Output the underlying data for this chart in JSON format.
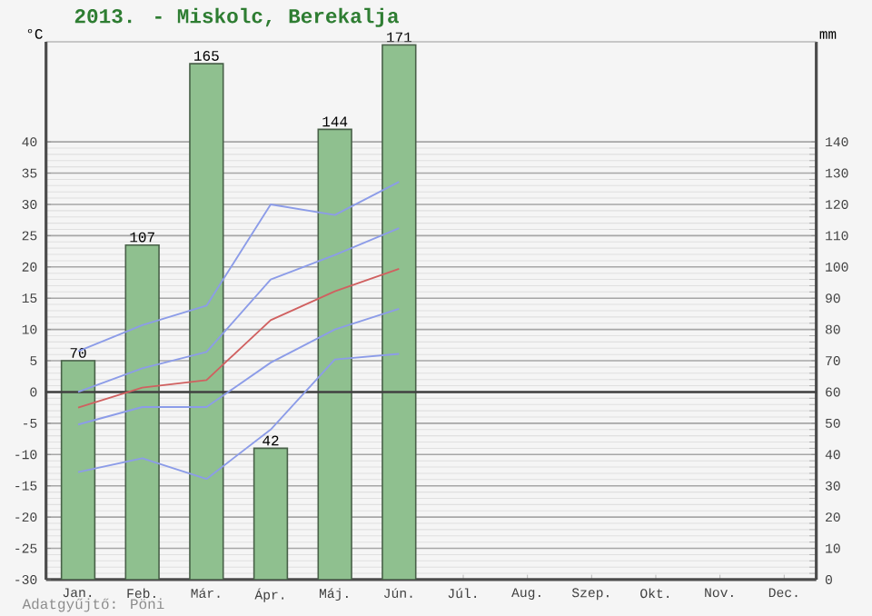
{
  "chart_data": {
    "type": "bar",
    "title": "2013. - Miskolc, Berekalja",
    "ylabel": "°C",
    "y2label": "mm",
    "categories": [
      "Jan.",
      "Feb.",
      "Már.",
      "Ápr.",
      "Máj.",
      "Jún.",
      "Júl.",
      "Aug.",
      "Szep.",
      "Okt.",
      "Nov.",
      "Dec."
    ],
    "series": [
      {
        "axis": "y2",
        "color": "#8fc08f",
        "values": [
          70,
          107,
          165,
          42,
          144,
          171,
          null,
          null,
          null,
          null,
          null,
          null
        ],
        "value_labels": [
          "70",
          "107",
          "165",
          "42",
          "144",
          "171",
          null,
          null,
          null,
          null,
          null,
          null
        ]
      },
      {
        "type": "line",
        "color": "#8c9ce8",
        "values": [
          6.5,
          10.7,
          13.8,
          30,
          28.3,
          33.6,
          null,
          null,
          null,
          null,
          null,
          null
        ]
      },
      {
        "type": "line",
        "color": "#8c9ce8",
        "values": [
          0,
          3.8,
          6.4,
          18,
          21.9,
          26.2,
          null,
          null,
          null,
          null,
          null,
          null
        ]
      },
      {
        "type": "line",
        "color": "#d06060",
        "values": [
          -2.5,
          0.7,
          1.9,
          11.5,
          16.1,
          19.7,
          null,
          null,
          null,
          null,
          null,
          null
        ]
      },
      {
        "type": "line",
        "color": "#8c9ce8",
        "values": [
          -5.2,
          -2.4,
          -2.4,
          4.7,
          10,
          13.3,
          null,
          null,
          null,
          null,
          null,
          null
        ]
      },
      {
        "type": "line",
        "color": "#8c9ce8",
        "values": [
          -12.8,
          -10.6,
          -13.9,
          -6,
          5.2,
          6.1,
          null,
          null,
          null,
          null,
          null,
          null
        ]
      }
    ],
    "ylim": [
      -30,
      56
    ],
    "yticks": [
      -30,
      -25,
      -20,
      -15,
      -10,
      -5,
      0,
      5,
      10,
      15,
      20,
      25,
      30,
      35,
      40
    ],
    "y2lim": [
      0,
      172
    ],
    "y2ticks": [
      0,
      10,
      20,
      30,
      40,
      50,
      60,
      70,
      80,
      90,
      100,
      110,
      120,
      130,
      140
    ],
    "grid": "y",
    "ref_lines": [
      {
        "axis": "y",
        "value": 0,
        "color": "#404040"
      }
    ],
    "annotations": [
      "Adatgyűjtő: Pöni"
    ]
  }
}
